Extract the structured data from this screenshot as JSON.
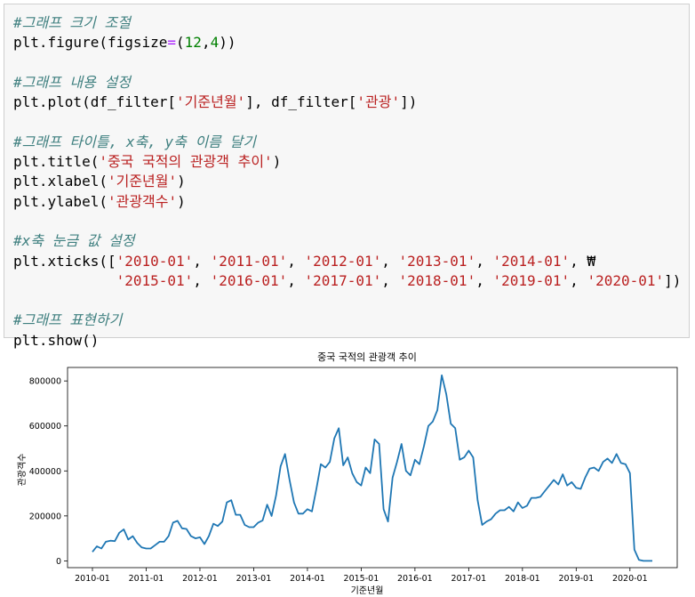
{
  "code_cell": {
    "lines": [
      {
        "parts": [
          {
            "c": "cm",
            "t": "#그래프 크기 조절"
          }
        ]
      },
      {
        "parts": [
          {
            "c": "",
            "t": "plt.figure(figsize"
          },
          {
            "c": "op",
            "t": "="
          },
          {
            "c": "",
            "t": "("
          },
          {
            "c": "nm",
            "t": "12"
          },
          {
            "c": "",
            "t": ","
          },
          {
            "c": "nm",
            "t": "4"
          },
          {
            "c": "",
            "t": "))"
          }
        ]
      },
      {
        "parts": []
      },
      {
        "parts": [
          {
            "c": "cm",
            "t": "#그래프 내용 설정"
          }
        ]
      },
      {
        "parts": [
          {
            "c": "",
            "t": "plt.plot(df_filter["
          },
          {
            "c": "st",
            "t": "'기준년월'"
          },
          {
            "c": "",
            "t": "], df_filter["
          },
          {
            "c": "st",
            "t": "'관광'"
          },
          {
            "c": "",
            "t": "])"
          }
        ]
      },
      {
        "parts": []
      },
      {
        "parts": [
          {
            "c": "cm",
            "t": "#그래프 타이틀, x축, y축 이름 달기"
          }
        ]
      },
      {
        "parts": [
          {
            "c": "",
            "t": "plt.title("
          },
          {
            "c": "st",
            "t": "'중국 국적의 관광객 추이'"
          },
          {
            "c": "",
            "t": ")"
          }
        ]
      },
      {
        "parts": [
          {
            "c": "",
            "t": "plt.xlabel("
          },
          {
            "c": "st",
            "t": "'기준년월'"
          },
          {
            "c": "",
            "t": ")"
          }
        ]
      },
      {
        "parts": [
          {
            "c": "",
            "t": "plt.ylabel("
          },
          {
            "c": "st",
            "t": "'관광객수'"
          },
          {
            "c": "",
            "t": ")"
          }
        ]
      },
      {
        "parts": []
      },
      {
        "parts": [
          {
            "c": "cm",
            "t": "#x축 눈금 값 설정"
          }
        ]
      },
      {
        "parts": [
          {
            "c": "",
            "t": "plt.xticks(["
          },
          {
            "c": "st",
            "t": "'2010-01'"
          },
          {
            "c": "",
            "t": ", "
          },
          {
            "c": "st",
            "t": "'2011-01'"
          },
          {
            "c": "",
            "t": ", "
          },
          {
            "c": "st",
            "t": "'2012-01'"
          },
          {
            "c": "",
            "t": ", "
          },
          {
            "c": "st",
            "t": "'2013-01'"
          },
          {
            "c": "",
            "t": ", "
          },
          {
            "c": "st",
            "t": "'2014-01'"
          },
          {
            "c": "",
            "t": ", ₩"
          }
        ]
      },
      {
        "parts": [
          {
            "c": "",
            "t": "            "
          },
          {
            "c": "st",
            "t": "'2015-01'"
          },
          {
            "c": "",
            "t": ", "
          },
          {
            "c": "st",
            "t": "'2016-01'"
          },
          {
            "c": "",
            "t": ", "
          },
          {
            "c": "st",
            "t": "'2017-01'"
          },
          {
            "c": "",
            "t": ", "
          },
          {
            "c": "st",
            "t": "'2018-01'"
          },
          {
            "c": "",
            "t": ", "
          },
          {
            "c": "st",
            "t": "'2019-01'"
          },
          {
            "c": "",
            "t": ", "
          },
          {
            "c": "st",
            "t": "'2020-01'"
          },
          {
            "c": "",
            "t": "])"
          }
        ]
      },
      {
        "parts": []
      },
      {
        "parts": [
          {
            "c": "cm",
            "t": "#그래프 표현하기"
          }
        ]
      },
      {
        "parts": [
          {
            "c": "",
            "t": "plt.show()"
          }
        ]
      }
    ]
  },
  "chart_data": {
    "type": "line",
    "title": "중국 국적의 관광객 추이",
    "xlabel": "기준년월",
    "ylabel": "관광객수",
    "ylim": [
      -30000,
      860000
    ],
    "yticks": [
      0,
      200000,
      400000,
      600000,
      800000
    ],
    "ytick_labels": [
      "0",
      "200000",
      "400000",
      "600000",
      "800000"
    ],
    "xticks": [
      "2010-01",
      "2011-01",
      "2012-01",
      "2013-01",
      "2014-01",
      "2015-01",
      "2016-01",
      "2017-01",
      "2018-01",
      "2019-01",
      "2020-01"
    ],
    "x": [
      "2010-01",
      "2010-02",
      "2010-03",
      "2010-04",
      "2010-05",
      "2010-06",
      "2010-07",
      "2010-08",
      "2010-09",
      "2010-10",
      "2010-11",
      "2010-12",
      "2011-01",
      "2011-02",
      "2011-03",
      "2011-04",
      "2011-05",
      "2011-06",
      "2011-07",
      "2011-08",
      "2011-09",
      "2011-10",
      "2011-11",
      "2011-12",
      "2012-01",
      "2012-02",
      "2012-03",
      "2012-04",
      "2012-05",
      "2012-06",
      "2012-07",
      "2012-08",
      "2012-09",
      "2012-10",
      "2012-11",
      "2012-12",
      "2013-01",
      "2013-02",
      "2013-03",
      "2013-04",
      "2013-05",
      "2013-06",
      "2013-07",
      "2013-08",
      "2013-09",
      "2013-10",
      "2013-11",
      "2013-12",
      "2014-01",
      "2014-02",
      "2014-03",
      "2014-04",
      "2014-05",
      "2014-06",
      "2014-07",
      "2014-08",
      "2014-09",
      "2014-10",
      "2014-11",
      "2014-12",
      "2015-01",
      "2015-02",
      "2015-03",
      "2015-04",
      "2015-05",
      "2015-06",
      "2015-07",
      "2015-08",
      "2015-09",
      "2015-10",
      "2015-11",
      "2015-12",
      "2016-01",
      "2016-02",
      "2016-03",
      "2016-04",
      "2016-05",
      "2016-06",
      "2016-07",
      "2016-08",
      "2016-09",
      "2016-10",
      "2016-11",
      "2016-12",
      "2017-01",
      "2017-02",
      "2017-03",
      "2017-04",
      "2017-05",
      "2017-06",
      "2017-07",
      "2017-08",
      "2017-09",
      "2017-10",
      "2017-11",
      "2017-12",
      "2018-01",
      "2018-02",
      "2018-03",
      "2018-04",
      "2018-05",
      "2018-06",
      "2018-07",
      "2018-08",
      "2018-09",
      "2018-10",
      "2018-11",
      "2018-12",
      "2019-01",
      "2019-02",
      "2019-03",
      "2019-04",
      "2019-05",
      "2019-06",
      "2019-07",
      "2019-08",
      "2019-09",
      "2019-10",
      "2019-11",
      "2019-12",
      "2020-01",
      "2020-02",
      "2020-03",
      "2020-04",
      "2020-05",
      "2020-06"
    ],
    "series": [
      {
        "color": "#1f77b4",
        "values": [
          40000,
          65000,
          55000,
          85000,
          90000,
          88000,
          125000,
          140000,
          95000,
          110000,
          80000,
          60000,
          55000,
          55000,
          70000,
          85000,
          85000,
          110000,
          170000,
          178000,
          145000,
          142000,
          110000,
          100000,
          105000,
          75000,
          110000,
          165000,
          155000,
          175000,
          260000,
          270000,
          205000,
          205000,
          160000,
          150000,
          150000,
          170000,
          180000,
          250000,
          200000,
          290000,
          420000,
          475000,
          360000,
          260000,
          210000,
          210000,
          230000,
          220000,
          320000,
          430000,
          415000,
          440000,
          545000,
          590000,
          425000,
          460000,
          390000,
          350000,
          335000,
          415000,
          390000,
          540000,
          520000,
          230000,
          175000,
          370000,
          440000,
          520000,
          400000,
          380000,
          450000,
          430000,
          510000,
          600000,
          620000,
          670000,
          825000,
          740000,
          610000,
          590000,
          450000,
          460000,
          490000,
          460000,
          270000,
          160000,
          175000,
          185000,
          210000,
          225000,
          225000,
          240000,
          220000,
          260000,
          235000,
          245000,
          280000,
          280000,
          285000,
          310000,
          335000,
          360000,
          340000,
          385000,
          335000,
          350000,
          325000,
          320000,
          370000,
          410000,
          415000,
          400000,
          440000,
          455000,
          435000,
          475000,
          435000,
          430000,
          390000,
          50000,
          5000,
          0,
          0,
          0
        ]
      }
    ],
    "grid": false
  }
}
